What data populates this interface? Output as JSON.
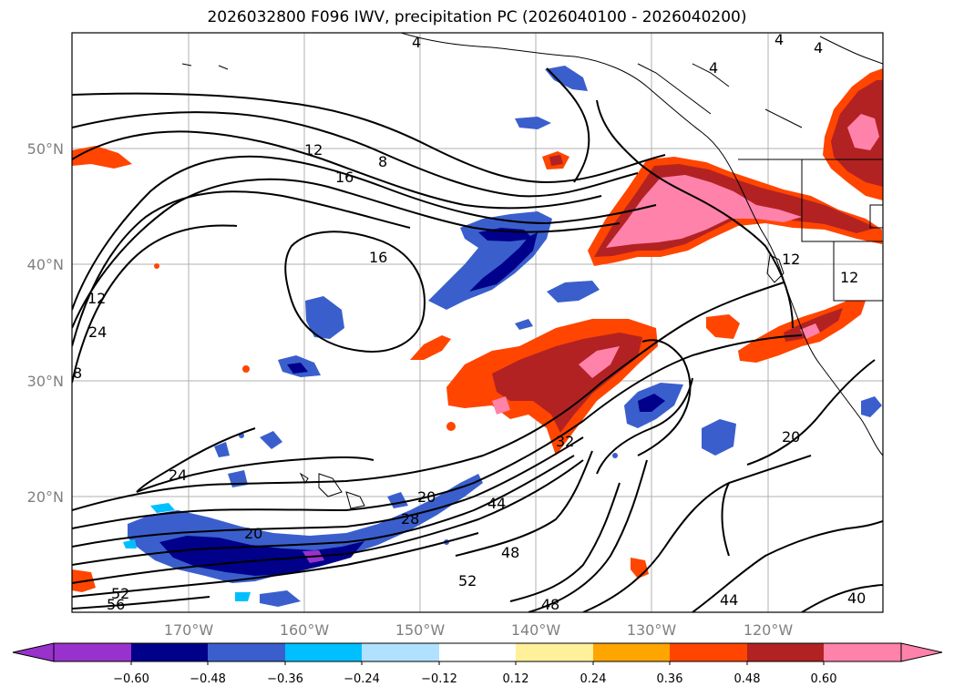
{
  "title": "2026032800 F096 IWV, precipitation PC (2026040100 - 2026040200)",
  "map": {
    "lon_ticks": [
      "170°W",
      "160°W",
      "150°W",
      "140°W",
      "130°W",
      "120°W"
    ],
    "lat_ticks": [
      "50°N",
      "40°N",
      "30°N",
      "20°N"
    ],
    "gridlines": true,
    "contour_color": "#000000",
    "contour_labels": [
      "4",
      "4",
      "4",
      "4",
      "8",
      "12",
      "16",
      "16",
      "12",
      "24",
      "8",
      "24",
      "12",
      "12",
      "32",
      "20",
      "28",
      "20",
      "44",
      "48",
      "52",
      "52",
      "56",
      "48",
      "44",
      "40",
      "20"
    ]
  },
  "colorbar": {
    "ticks": [
      "−0.60",
      "−0.48",
      "−0.36",
      "−0.24",
      "−0.12",
      "0.12",
      "0.24",
      "0.36",
      "0.48",
      "0.60"
    ],
    "colors": [
      "#9932cc",
      "#00008b",
      "#3a5fcd",
      "#00bfff",
      "#b0e2ff",
      "#ffffff",
      "#fff09a",
      "#ffa500",
      "#ff4500",
      "#b22222",
      "#ff82ab",
      "#ff82ab"
    ]
  }
}
